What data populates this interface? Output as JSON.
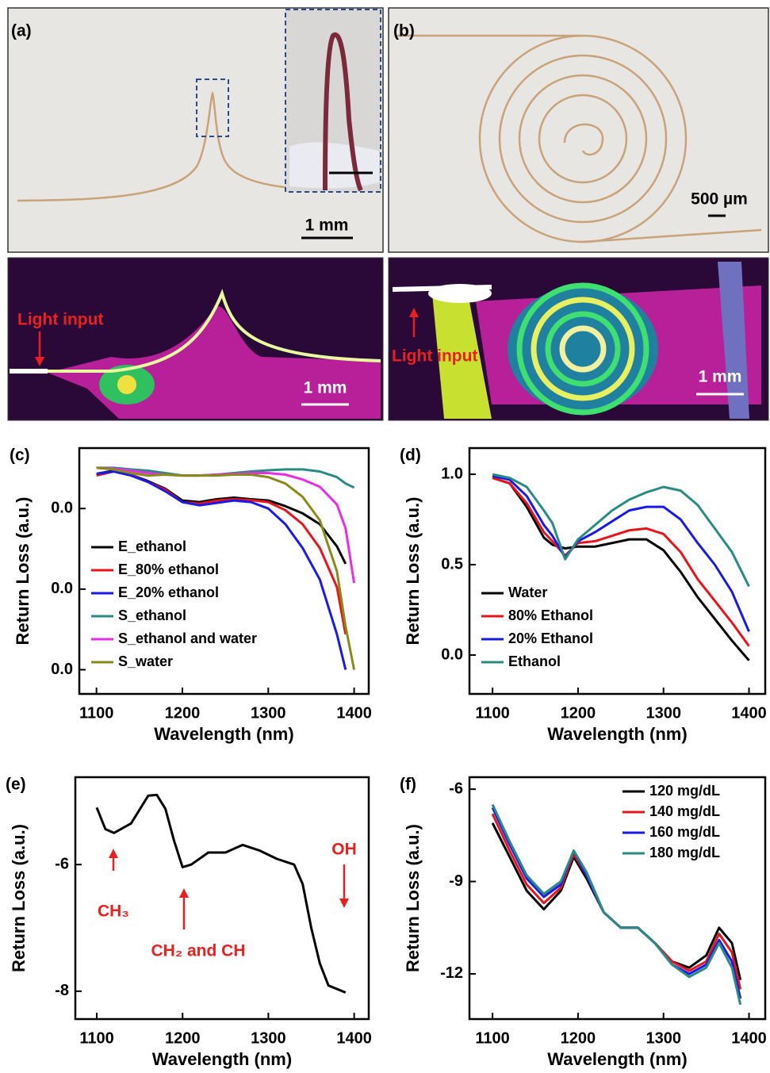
{
  "photos": {
    "a": {
      "label": "(a)",
      "scale_bar": "1 mm"
    },
    "b": {
      "label": "(b)",
      "scale_bar": "500 µm"
    },
    "a_thermal": {
      "annotation": "Light input",
      "scale_bar": "1 mm"
    },
    "b_thermal": {
      "annotation": "Light input",
      "scale_bar": "1 mm"
    }
  },
  "chart_data": [
    {
      "type": "line",
      "label": "(c)",
      "xlabel": "Wavelength (nm)",
      "ylabel": "Return Loss (a.u.)",
      "xlim": [
        1080,
        1417
      ],
      "ylim": [
        -0.006,
        0.055
      ],
      "xticks": [
        1100,
        1200,
        1300,
        1400
      ],
      "yticks": [
        {
          "value": 0.0,
          "label": "0.0"
        },
        {
          "value": 0.02,
          "label": "0.0"
        },
        {
          "value": 0.04,
          "label": "0.0"
        }
      ],
      "legend": "lower left",
      "x": [
        1100,
        1120,
        1140,
        1160,
        1180,
        1200,
        1220,
        1240,
        1260,
        1280,
        1300,
        1320,
        1340,
        1360,
        1380,
        1390,
        1400
      ],
      "series": [
        {
          "name": "E_ethanol",
          "color": "#000000",
          "values": [
            0.0486,
            0.0494,
            0.0484,
            0.0468,
            0.0449,
            0.042,
            0.0416,
            0.0423,
            0.0427,
            0.0423,
            0.042,
            0.0406,
            0.0388,
            0.0361,
            0.0306,
            0.0263,
            null
          ]
        },
        {
          "name": "E_80% ethanol",
          "color": "#e8141c",
          "values": [
            0.0482,
            0.0492,
            0.0484,
            0.0466,
            0.0447,
            0.0416,
            0.0412,
            0.042,
            0.0423,
            0.0421,
            0.0416,
            0.0396,
            0.0361,
            0.0302,
            0.0205,
            0.0088,
            null
          ]
        },
        {
          "name": "E_20% ethanol",
          "color": "#1a1ae6",
          "values": [
            0.0486,
            0.0492,
            0.0482,
            0.0466,
            0.0443,
            0.0416,
            0.0408,
            0.0414,
            0.042,
            0.0416,
            0.04,
            0.0361,
            0.0302,
            0.0224,
            0.0088,
            0.0,
            null
          ]
        },
        {
          "name": "S_ethanol",
          "color": "#2a8a84",
          "values": [
            0.0501,
            0.0501,
            0.0497,
            0.0494,
            0.0488,
            0.0482,
            0.0482,
            0.0484,
            0.0488,
            0.0492,
            0.0495,
            0.0497,
            0.0497,
            0.0492,
            0.0478,
            0.0462,
            0.0452
          ]
        },
        {
          "name": "S_ethanol and water",
          "color": "#e62ee6",
          "values": [
            0.0501,
            0.0499,
            0.0494,
            0.0488,
            0.0484,
            0.0482,
            0.0482,
            0.0484,
            0.0486,
            0.0488,
            0.0488,
            0.0484,
            0.0472,
            0.0454,
            0.041,
            0.0351,
            0.0215
          ]
        },
        {
          "name": "S_water",
          "color": "#8a8a1a",
          "values": [
            0.0501,
            0.0497,
            0.0488,
            0.0482,
            0.0484,
            0.0482,
            0.0482,
            0.0482,
            0.0484,
            0.0484,
            0.0478,
            0.0462,
            0.0429,
            0.0371,
            0.0244,
            0.0107,
            0.0
          ]
        }
      ]
    },
    {
      "type": "line",
      "label": "(d)",
      "xlabel": "Wavelength (nm)",
      "ylabel": "Return Loss (a.u.)",
      "xlim": [
        1073,
        1419
      ],
      "ylim": [
        -0.215,
        1.145
      ],
      "xticks": [
        1100,
        1200,
        1300,
        1400
      ],
      "yticks": [
        {
          "value": 0,
          "label": "0.0"
        },
        0.5,
        {
          "value": 1,
          "label": "1.0"
        }
      ],
      "legend": "lower left",
      "x": [
        1100,
        1120,
        1140,
        1160,
        1170,
        1185,
        1200,
        1220,
        1240,
        1260,
        1280,
        1300,
        1320,
        1340,
        1360,
        1380,
        1400
      ],
      "series": [
        {
          "name": "Water",
          "color": "#000000",
          "values": [
            0.98,
            0.95,
            0.82,
            0.65,
            0.61,
            0.59,
            0.6,
            0.6,
            0.62,
            0.64,
            0.64,
            0.58,
            0.46,
            0.32,
            0.2,
            0.08,
            -0.03
          ]
        },
        {
          "name": "80% Ethanol",
          "color": "#e8141c",
          "values": [
            0.98,
            0.95,
            0.84,
            0.68,
            0.63,
            0.55,
            0.62,
            0.63,
            0.66,
            0.69,
            0.7,
            0.67,
            0.57,
            0.42,
            0.3,
            0.18,
            0.05
          ]
        },
        {
          "name": "20% Ethanol",
          "color": "#1a1ae6",
          "values": [
            0.99,
            0.97,
            0.88,
            0.72,
            0.66,
            0.54,
            0.63,
            0.68,
            0.74,
            0.8,
            0.82,
            0.82,
            0.75,
            0.62,
            0.5,
            0.35,
            0.13
          ]
        },
        {
          "name": "Ethanol",
          "color": "#2a8a84",
          "values": [
            1.0,
            0.98,
            0.93,
            0.8,
            0.73,
            0.53,
            0.64,
            0.72,
            0.8,
            0.86,
            0.9,
            0.93,
            0.91,
            0.83,
            0.7,
            0.57,
            0.38
          ]
        }
      ]
    },
    {
      "type": "line",
      "label": "(e)",
      "xlabel": "Wavelength (nm)",
      "ylabel": "Return Loss (a.u.)",
      "xlim": [
        1075,
        1417
      ],
      "ylim": [
        -8.44,
        -4.62
      ],
      "xticks": [
        1100,
        1200,
        1300,
        1400
      ],
      "yticks": [
        -8,
        -6
      ],
      "annotations": [
        "CH₃",
        "CH₂ and CH",
        "OH"
      ],
      "annotation_color": "#e82020",
      "x": [
        1100,
        1110,
        1120,
        1140,
        1160,
        1170,
        1180,
        1190,
        1200,
        1210,
        1230,
        1250,
        1270,
        1290,
        1310,
        1330,
        1340,
        1350,
        1360,
        1370,
        1390
      ],
      "series": [
        {
          "color": "#000000",
          "values": [
            -5.1,
            -5.44,
            -5.5,
            -5.35,
            -4.91,
            -4.9,
            -5.12,
            -5.62,
            -6.04,
            -6.0,
            -5.81,
            -5.81,
            -5.69,
            -5.78,
            -5.91,
            -6.0,
            -6.31,
            -7.0,
            -7.56,
            -7.91,
            -8.02
          ]
        }
      ]
    },
    {
      "type": "line",
      "label": "(f)",
      "xlabel": "Wavelength (nm)",
      "ylabel": "Return Loss (a.u.)",
      "xlim": [
        1073,
        1419
      ],
      "ylim": [
        -13.47,
        -5.61
      ],
      "xticks": [
        1100,
        1200,
        1300,
        1400
      ],
      "yticks": [
        -12,
        -9,
        -6
      ],
      "legend": "upper right",
      "x": [
        1100,
        1120,
        1140,
        1160,
        1180,
        1195,
        1210,
        1230,
        1250,
        1270,
        1290,
        1310,
        1330,
        1350,
        1365,
        1380,
        1390
      ],
      "series": [
        {
          "name": "120 mg/dL",
          "color": "#000000",
          "values": [
            -7.1,
            -8.2,
            -9.3,
            -9.9,
            -9.3,
            -8.2,
            -8.9,
            -10.0,
            -10.5,
            -10.5,
            -11.0,
            -11.6,
            -11.8,
            -11.4,
            -10.5,
            -11.0,
            -12.2
          ]
        },
        {
          "name": "140 mg/dL",
          "color": "#e8141c",
          "values": [
            -6.8,
            -8.0,
            -9.1,
            -9.7,
            -9.2,
            -8.1,
            -8.8,
            -10.0,
            -10.5,
            -10.5,
            -11.0,
            -11.6,
            -11.9,
            -11.6,
            -10.7,
            -11.3,
            -12.5
          ]
        },
        {
          "name": "160 mg/dL",
          "color": "#1a1ae6",
          "values": [
            -6.6,
            -7.8,
            -8.9,
            -9.5,
            -9.1,
            -8.0,
            -8.8,
            -10.0,
            -10.5,
            -10.5,
            -11.0,
            -11.7,
            -12.0,
            -11.7,
            -10.9,
            -11.6,
            -12.8
          ]
        },
        {
          "name": "180 mg/dL",
          "color": "#2a8a84",
          "values": [
            -6.5,
            -7.7,
            -8.8,
            -9.4,
            -9.0,
            -8.0,
            -8.7,
            -10.0,
            -10.5,
            -10.5,
            -11.0,
            -11.7,
            -12.1,
            -11.8,
            -11.0,
            -11.8,
            -13.0
          ]
        }
      ]
    }
  ]
}
